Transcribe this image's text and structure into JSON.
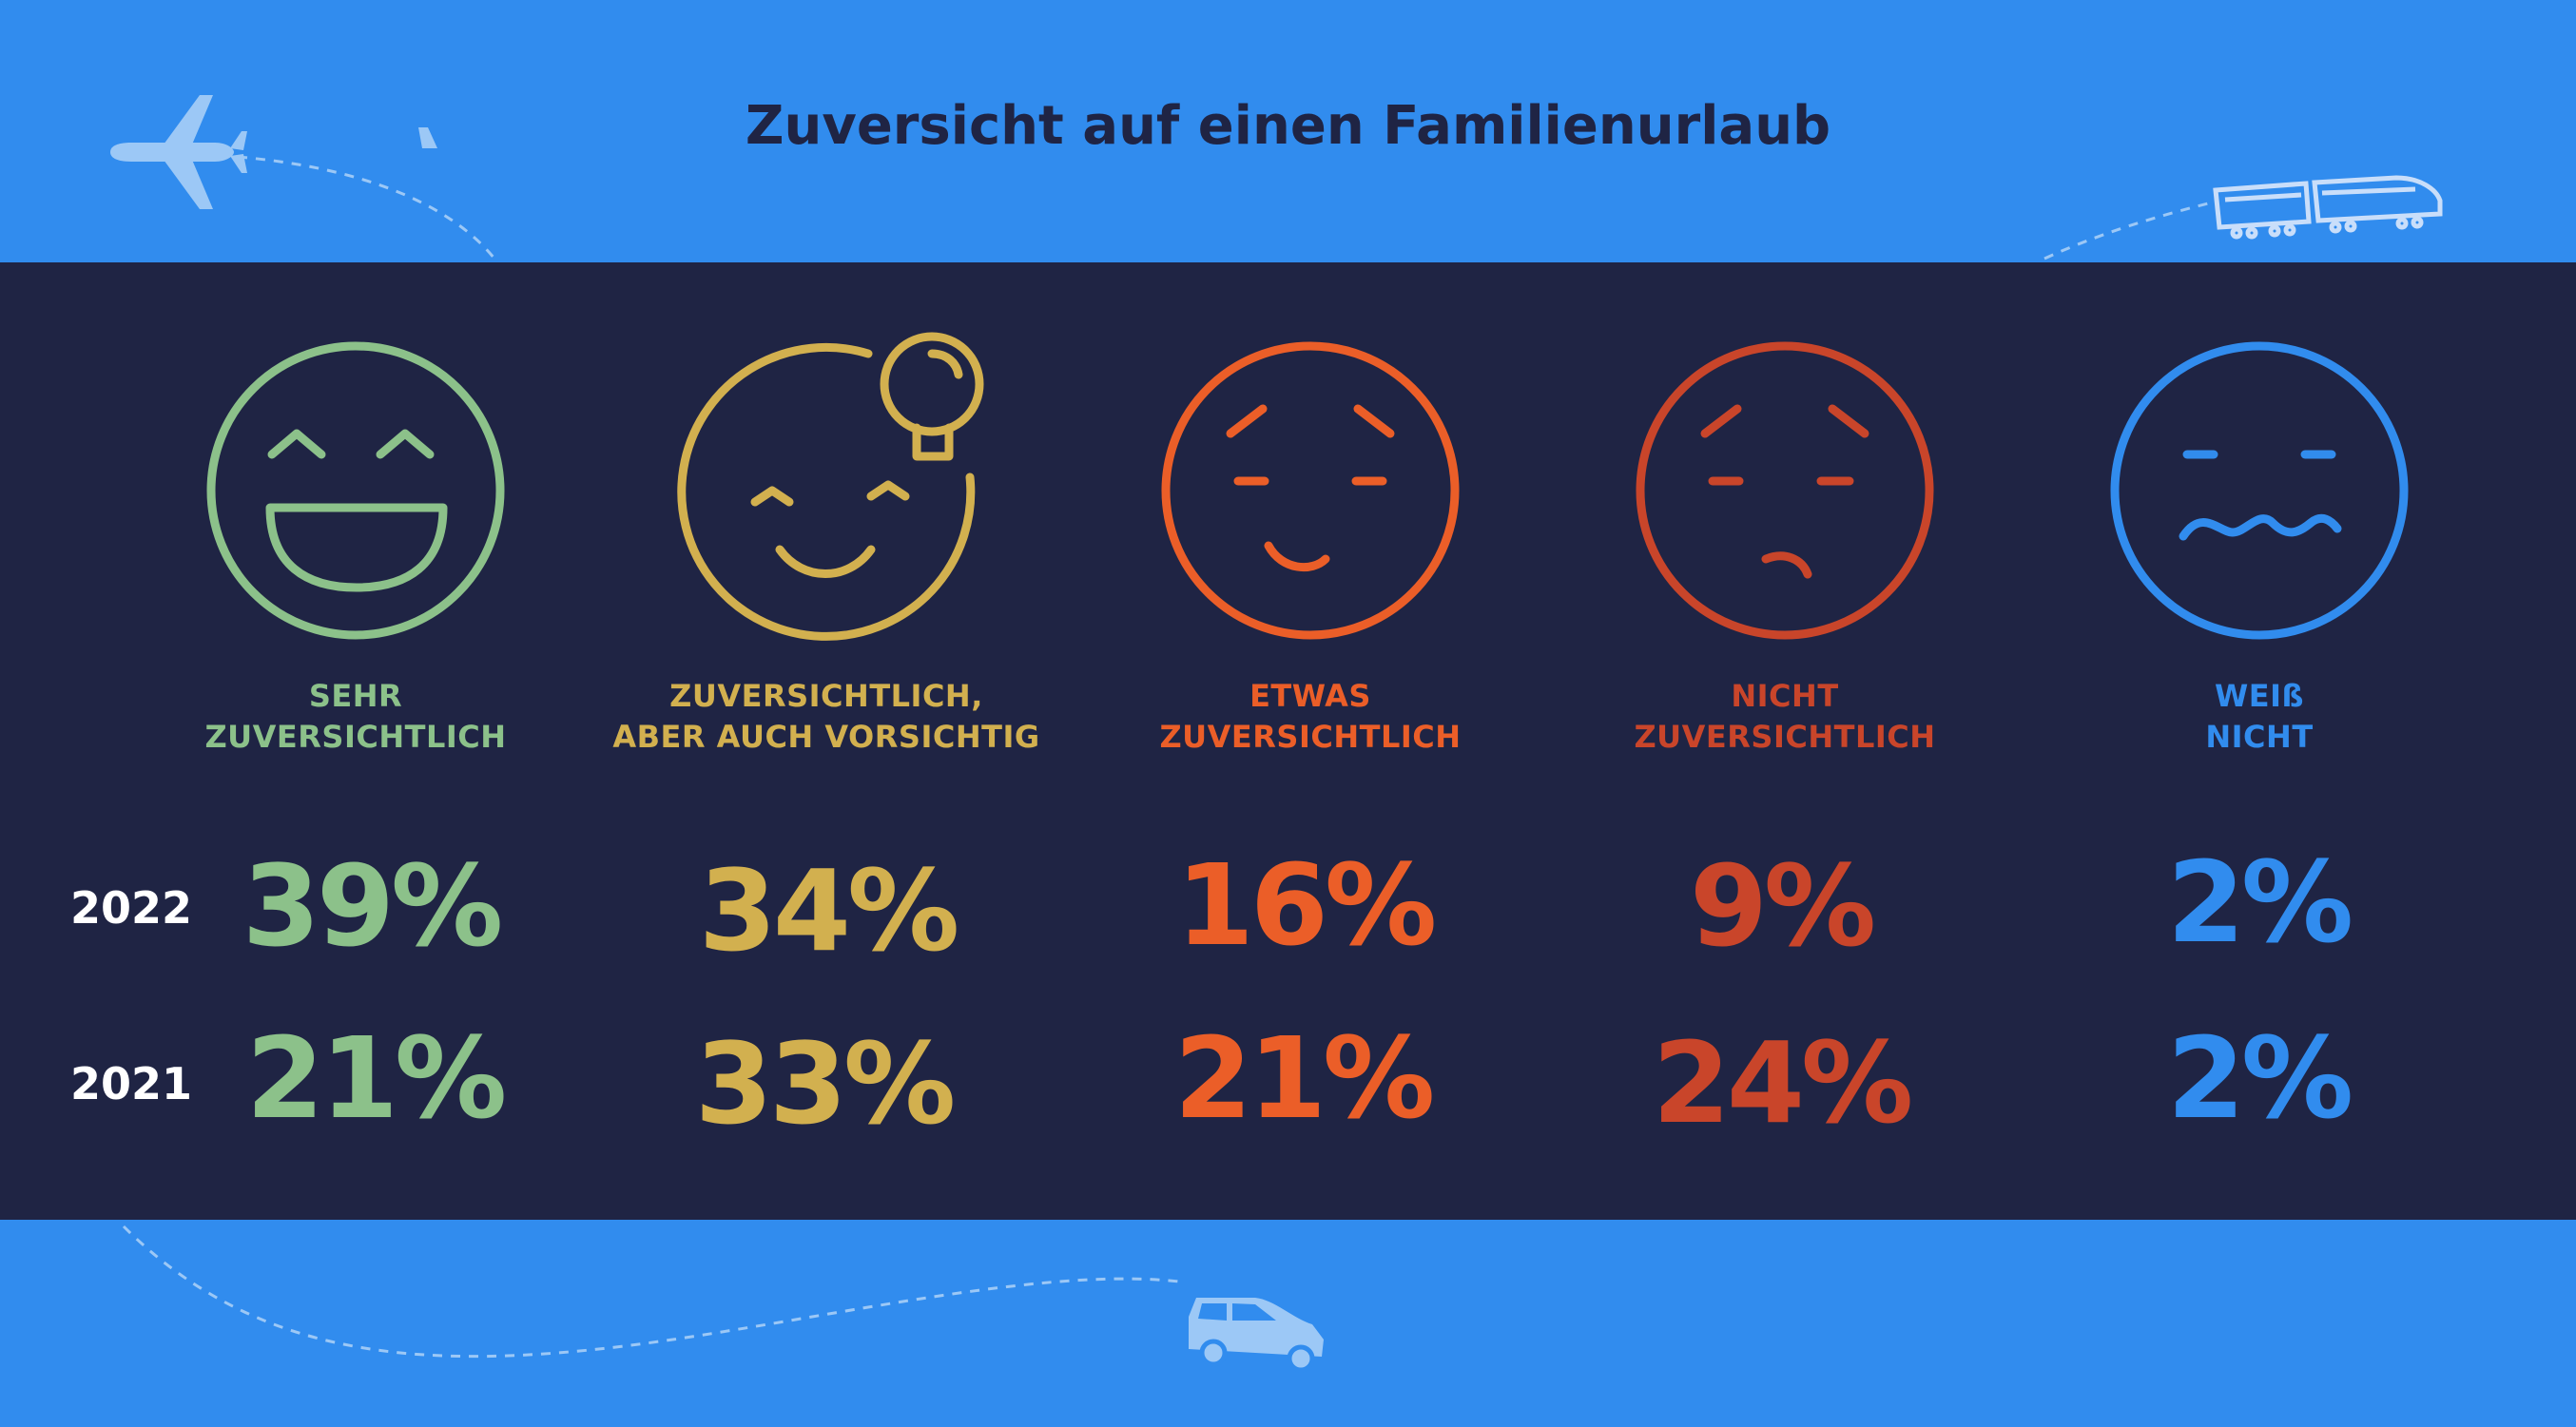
{
  "title": "Zuversicht auf einen Familienurlaub",
  "colors": {
    "band": "#318cee",
    "panel": "#1f2444",
    "title": "#1f2444",
    "categories": [
      "#8cc18a",
      "#d2b04f",
      "#eb5e28",
      "#c9452a",
      "#318cee"
    ]
  },
  "icons": [
    "plane-icon",
    "train-icon",
    "car-icon"
  ],
  "chart_data": {
    "type": "table",
    "title": "Zuversicht auf einen Familienurlaub",
    "categories": [
      {
        "line1": "SEHR",
        "line2": "ZUVERSICHTLICH",
        "icon": "very-happy-face-icon"
      },
      {
        "line1": "ZUVERSICHTLICH,",
        "line2": "ABER AUCH VORSICHTIG",
        "icon": "smiling-face-lightbulb-icon"
      },
      {
        "line1": "ETWAS",
        "line2": "ZUVERSICHTLICH",
        "icon": "slight-smile-face-icon"
      },
      {
        "line1": "NICHT",
        "line2": "ZUVERSICHTLICH",
        "icon": "frowning-face-icon"
      },
      {
        "line1": "WEIß",
        "line2": "NICHT",
        "icon": "wavy-mouth-face-icon"
      }
    ],
    "series": [
      {
        "name": "2022",
        "values": [
          39,
          34,
          16,
          9,
          2
        ],
        "labels": [
          "39%",
          "34%",
          "16%",
          "9%",
          "2%"
        ]
      },
      {
        "name": "2021",
        "values": [
          21,
          33,
          21,
          24,
          2
        ],
        "labels": [
          "21%",
          "33%",
          "21%",
          "24%",
          "2%"
        ]
      }
    ],
    "unit": "%"
  }
}
